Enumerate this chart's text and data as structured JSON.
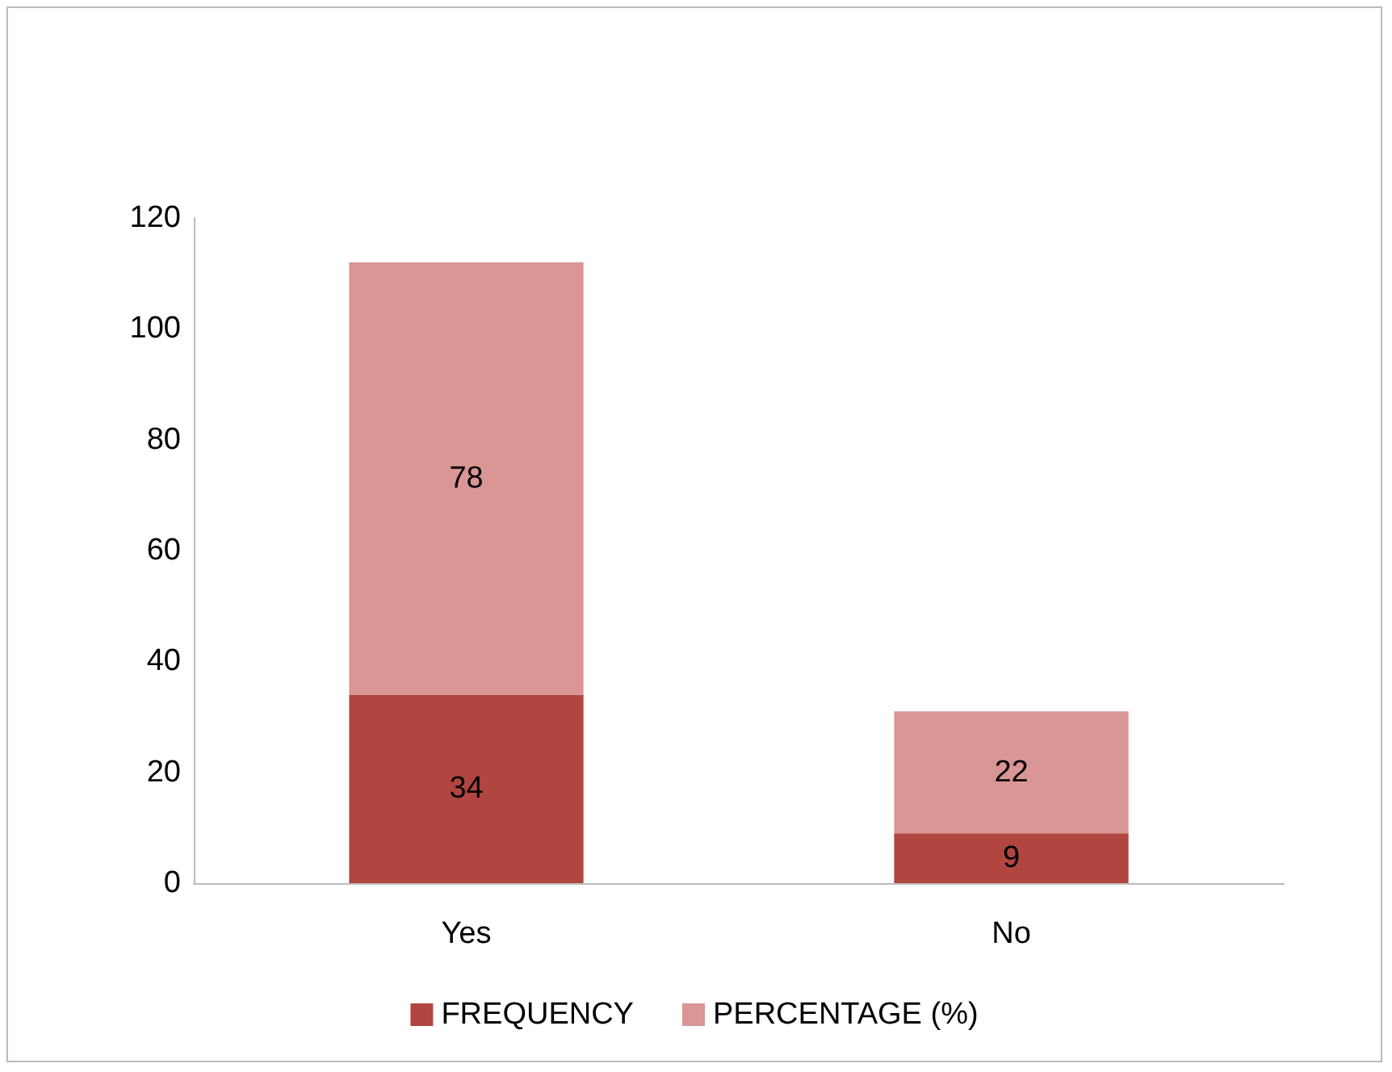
{
  "chart_data": {
    "type": "bar",
    "stacked": true,
    "categories": [
      "Yes",
      "No"
    ],
    "series": [
      {
        "name": "FREQUENCY",
        "color": "#b0463f",
        "values": [
          34,
          9
        ]
      },
      {
        "name": "PERCENTAGE (%)",
        "color": "#d99694",
        "values": [
          78,
          22
        ]
      }
    ],
    "ylim": [
      0,
      120
    ],
    "yticks": [
      0,
      20,
      40,
      60,
      80,
      100,
      120
    ],
    "grid": false,
    "legend": "bottom",
    "data_labels": true
  }
}
